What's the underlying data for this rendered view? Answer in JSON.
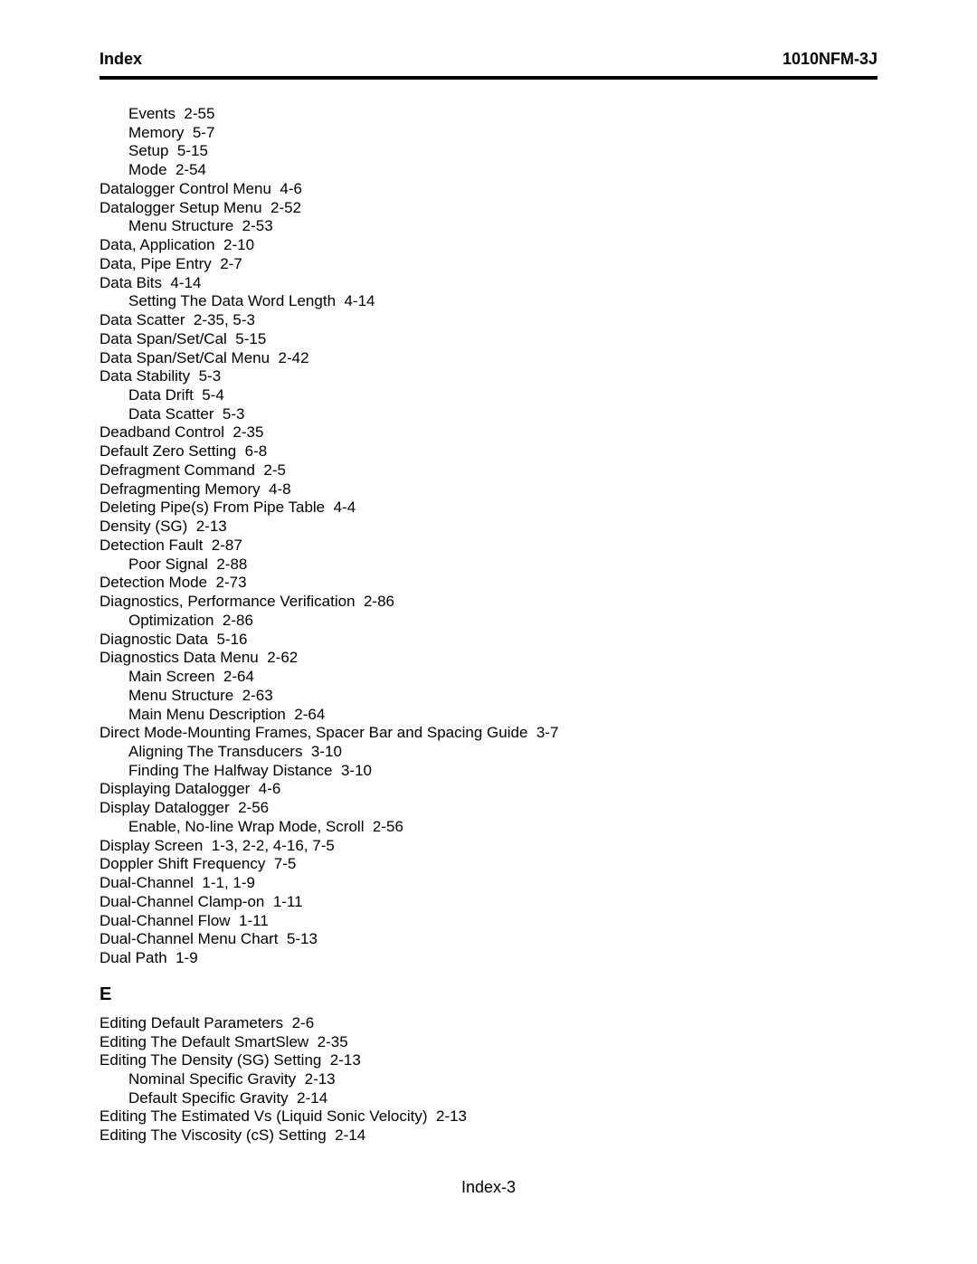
{
  "header": {
    "left": "Index",
    "right": "1010NFM-3J"
  },
  "entries": [
    {
      "level": 1,
      "text": "Events  2-55"
    },
    {
      "level": 1,
      "text": "Memory  5-7"
    },
    {
      "level": 1,
      "text": "Setup  5-15"
    },
    {
      "level": 1,
      "text": "Mode  2-54"
    },
    {
      "level": 0,
      "text": "Datalogger Control Menu  4-6"
    },
    {
      "level": 0,
      "text": "Datalogger Setup Menu  2-52"
    },
    {
      "level": 1,
      "text": "Menu Structure  2-53"
    },
    {
      "level": 0,
      "text": "Data, Application  2-10"
    },
    {
      "level": 0,
      "text": "Data, Pipe Entry  2-7"
    },
    {
      "level": 0,
      "text": "Data Bits  4-14"
    },
    {
      "level": 1,
      "text": "Setting The Data Word Length  4-14"
    },
    {
      "level": 0,
      "text": "Data Scatter  2-35, 5-3"
    },
    {
      "level": 0,
      "text": "Data Span/Set/Cal  5-15"
    },
    {
      "level": 0,
      "text": "Data Span/Set/Cal Menu  2-42"
    },
    {
      "level": 0,
      "text": "Data Stability  5-3"
    },
    {
      "level": 1,
      "text": "Data Drift  5-4"
    },
    {
      "level": 1,
      "text": "Data Scatter  5-3"
    },
    {
      "level": 0,
      "text": "Deadband Control  2-35"
    },
    {
      "level": 0,
      "text": "Default Zero Setting  6-8"
    },
    {
      "level": 0,
      "text": "Defragment Command  2-5"
    },
    {
      "level": 0,
      "text": "Defragmenting Memory  4-8"
    },
    {
      "level": 0,
      "text": "Deleting Pipe(s) From Pipe Table  4-4"
    },
    {
      "level": 0,
      "text": "Density (SG)  2-13"
    },
    {
      "level": 0,
      "text": "Detection Fault  2-87"
    },
    {
      "level": 1,
      "text": "Poor Signal  2-88"
    },
    {
      "level": 0,
      "text": "Detection Mode  2-73"
    },
    {
      "level": 0,
      "text": "Diagnostics, Performance Verification  2-86"
    },
    {
      "level": 1,
      "text": "Optimization  2-86"
    },
    {
      "level": 0,
      "text": "Diagnostic Data  5-16"
    },
    {
      "level": 0,
      "text": "Diagnostics Data Menu  2-62"
    },
    {
      "level": 1,
      "text": "Main Screen  2-64"
    },
    {
      "level": 1,
      "text": "Menu Structure  2-63"
    },
    {
      "level": 1,
      "text": "Main Menu Description  2-64"
    },
    {
      "level": 0,
      "text": "Direct Mode-Mounting Frames, Spacer Bar and Spacing Guide  3-7"
    },
    {
      "level": 1,
      "text": "Aligning The Transducers  3-10"
    },
    {
      "level": 1,
      "text": "Finding The Halfway Distance  3-10"
    },
    {
      "level": 0,
      "text": "Displaying Datalogger  4-6"
    },
    {
      "level": 0,
      "text": "Display Datalogger  2-56"
    },
    {
      "level": 1,
      "text": "Enable, No-line Wrap Mode, Scroll  2-56"
    },
    {
      "level": 0,
      "text": "Display Screen  1-3, 2-2, 4-16, 7-5"
    },
    {
      "level": 0,
      "text": "Doppler Shift Frequency  7-5"
    },
    {
      "level": 0,
      "text": "Dual-Channel  1-1, 1-9"
    },
    {
      "level": 0,
      "text": "Dual-Channel Clamp-on  1-11"
    },
    {
      "level": 0,
      "text": "Dual-Channel Flow  1-11"
    },
    {
      "level": 0,
      "text": "Dual-Channel Menu Chart  5-13"
    },
    {
      "level": 0,
      "text": "Dual Path  1-9"
    }
  ],
  "section_e": {
    "letter": "E",
    "entries": [
      {
        "level": 0,
        "text": "Editing Default Parameters  2-6"
      },
      {
        "level": 0,
        "text": "Editing The Default SmartSlew  2-35"
      },
      {
        "level": 0,
        "text": "Editing The Density (SG) Setting  2-13"
      },
      {
        "level": 1,
        "text": "Nominal Specific Gravity  2-13"
      },
      {
        "level": 1,
        "text": "Default Specific Gravity  2-14"
      },
      {
        "level": 0,
        "text": "Editing The Estimated Vs (Liquid Sonic Velocity)  2-13"
      },
      {
        "level": 0,
        "text": "Editing The Viscosity (cS) Setting  2-14"
      }
    ]
  },
  "footer": "Index-3"
}
